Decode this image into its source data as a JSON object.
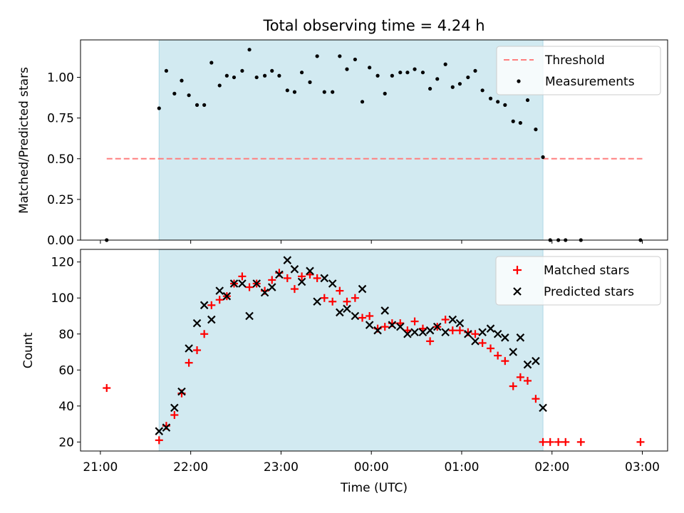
{
  "chart_data": [
    {
      "type": "scatter",
      "title": "Total observing time = 4.24 h",
      "ylabel": "Matched/Predicted stars",
      "xlabel": "",
      "x_ticks": [
        "21:00",
        "22:00",
        "23:00",
        "00:00",
        "01:00",
        "02:00",
        "03:00"
      ],
      "x_tick_positions_hours": [
        0,
        1,
        2,
        3,
        4,
        5,
        6
      ],
      "xlim_hours": [
        -0.22,
        6.28
      ],
      "ylim": [
        0,
        1.23
      ],
      "y_ticks": [
        "0.00",
        "0.25",
        "0.50",
        "0.75",
        "1.00"
      ],
      "y_tick_values": [
        0,
        0.25,
        0.5,
        0.75,
        1.0
      ],
      "observing_window_hours": [
        0.65,
        4.9
      ],
      "observing_window_color": "#add8e6",
      "threshold": {
        "name": "Threshold",
        "value": 0.5,
        "x_range_hours": [
          0.07,
          6.0
        ],
        "color": "#ff7f7f"
      },
      "series": [
        {
          "name": "Measurements",
          "color": "#000000",
          "x_hours": [
            0.07,
            0.65,
            0.73,
            0.82,
            0.9,
            0.98,
            1.07,
            1.15,
            1.23,
            1.32,
            1.4,
            1.48,
            1.57,
            1.65,
            1.73,
            1.82,
            1.9,
            1.98,
            2.07,
            2.15,
            2.23,
            2.32,
            2.4,
            2.48,
            2.57,
            2.65,
            2.73,
            2.82,
            2.9,
            2.98,
            3.07,
            3.15,
            3.23,
            3.32,
            3.4,
            3.48,
            3.57,
            3.65,
            3.73,
            3.82,
            3.9,
            3.98,
            4.07,
            4.15,
            4.23,
            4.32,
            4.4,
            4.48,
            4.57,
            4.65,
            4.73,
            4.82,
            4.9,
            4.98,
            5.07,
            5.15,
            5.32,
            5.98
          ],
          "values": [
            0.0,
            0.81,
            1.04,
            0.9,
            0.98,
            0.89,
            0.83,
            0.83,
            1.09,
            0.95,
            1.01,
            1.0,
            1.04,
            1.17,
            1.0,
            1.01,
            1.04,
            1.01,
            0.92,
            0.91,
            1.03,
            0.97,
            1.13,
            0.91,
            0.91,
            1.13,
            1.05,
            1.11,
            0.85,
            1.06,
            1.01,
            0.9,
            1.01,
            1.03,
            1.03,
            1.05,
            1.03,
            0.93,
            0.99,
            1.08,
            0.94,
            0.96,
            1.0,
            1.04,
            0.92,
            0.87,
            0.85,
            0.83,
            0.73,
            0.72,
            0.86,
            0.68,
            0.51,
            0.0,
            0.0,
            0.0,
            0.0,
            0.0
          ]
        }
      ],
      "legend": {
        "position": "upper-right",
        "entries": [
          "Threshold",
          "Measurements"
        ]
      }
    },
    {
      "type": "scatter",
      "title": "",
      "ylabel": "Count",
      "xlabel": "Time (UTC)",
      "x_ticks": [
        "21:00",
        "22:00",
        "23:00",
        "00:00",
        "01:00",
        "02:00",
        "03:00"
      ],
      "x_tick_positions_hours": [
        0,
        1,
        2,
        3,
        4,
        5,
        6
      ],
      "xlim_hours": [
        -0.22,
        6.28
      ],
      "ylim": [
        15,
        127
      ],
      "y_ticks": [
        "20",
        "40",
        "60",
        "80",
        "100",
        "120"
      ],
      "y_tick_values": [
        20,
        40,
        60,
        80,
        100,
        120
      ],
      "observing_window_hours": [
        0.65,
        4.9
      ],
      "observing_window_color": "#add8e6",
      "series": [
        {
          "name": "Matched stars",
          "marker": "plus",
          "color": "#ff0000",
          "x_hours": [
            0.07,
            0.65,
            0.73,
            0.82,
            0.9,
            0.98,
            1.07,
            1.15,
            1.23,
            1.32,
            1.4,
            1.48,
            1.57,
            1.65,
            1.73,
            1.82,
            1.9,
            1.98,
            2.07,
            2.15,
            2.23,
            2.32,
            2.4,
            2.48,
            2.57,
            2.65,
            2.73,
            2.82,
            2.9,
            2.98,
            3.07,
            3.15,
            3.23,
            3.32,
            3.4,
            3.48,
            3.57,
            3.65,
            3.73,
            3.82,
            3.9,
            3.98,
            4.07,
            4.15,
            4.23,
            4.32,
            4.4,
            4.48,
            4.57,
            4.65,
            4.73,
            4.82,
            4.9,
            4.98,
            5.07,
            5.15,
            5.32,
            5.98
          ],
          "values": [
            50,
            21,
            29,
            35,
            47,
            64,
            71,
            80,
            96,
            99,
            101,
            108,
            112,
            106,
            108,
            104,
            110,
            114,
            111,
            105,
            112,
            113,
            111,
            100,
            98,
            104,
            98,
            100,
            89,
            90,
            83,
            84,
            86,
            86,
            82,
            87,
            83,
            76,
            84,
            88,
            82,
            82,
            81,
            80,
            75,
            72,
            68,
            65,
            51,
            56,
            54,
            44,
            20,
            20,
            20,
            20,
            20,
            20
          ]
        },
        {
          "name": "Predicted stars",
          "marker": "x",
          "color": "#000000",
          "x_hours": [
            0.65,
            0.73,
            0.82,
            0.9,
            0.98,
            1.07,
            1.15,
            1.23,
            1.32,
            1.4,
            1.48,
            1.57,
            1.65,
            1.73,
            1.82,
            1.9,
            1.98,
            2.07,
            2.15,
            2.23,
            2.32,
            2.4,
            2.48,
            2.57,
            2.65,
            2.73,
            2.82,
            2.9,
            2.98,
            3.07,
            3.15,
            3.23,
            3.32,
            3.4,
            3.48,
            3.57,
            3.65,
            3.73,
            3.82,
            3.9,
            3.98,
            4.07,
            4.15,
            4.23,
            4.32,
            4.4,
            4.48,
            4.57,
            4.65,
            4.73,
            4.82,
            4.9
          ],
          "values": [
            26,
            28,
            39,
            48,
            72,
            86,
            96,
            88,
            104,
            101,
            108,
            108,
            90,
            108,
            103,
            106,
            113,
            121,
            116,
            109,
            115,
            98,
            111,
            108,
            92,
            94,
            90,
            105,
            85,
            82,
            93,
            85,
            84,
            80,
            81,
            81,
            82,
            84,
            81,
            88,
            86,
            80,
            76,
            81,
            83,
            80,
            78,
            70,
            78,
            63,
            65,
            39
          ]
        }
      ],
      "legend": {
        "position": "upper-right",
        "entries": [
          "Matched stars",
          "Predicted stars"
        ]
      }
    }
  ]
}
